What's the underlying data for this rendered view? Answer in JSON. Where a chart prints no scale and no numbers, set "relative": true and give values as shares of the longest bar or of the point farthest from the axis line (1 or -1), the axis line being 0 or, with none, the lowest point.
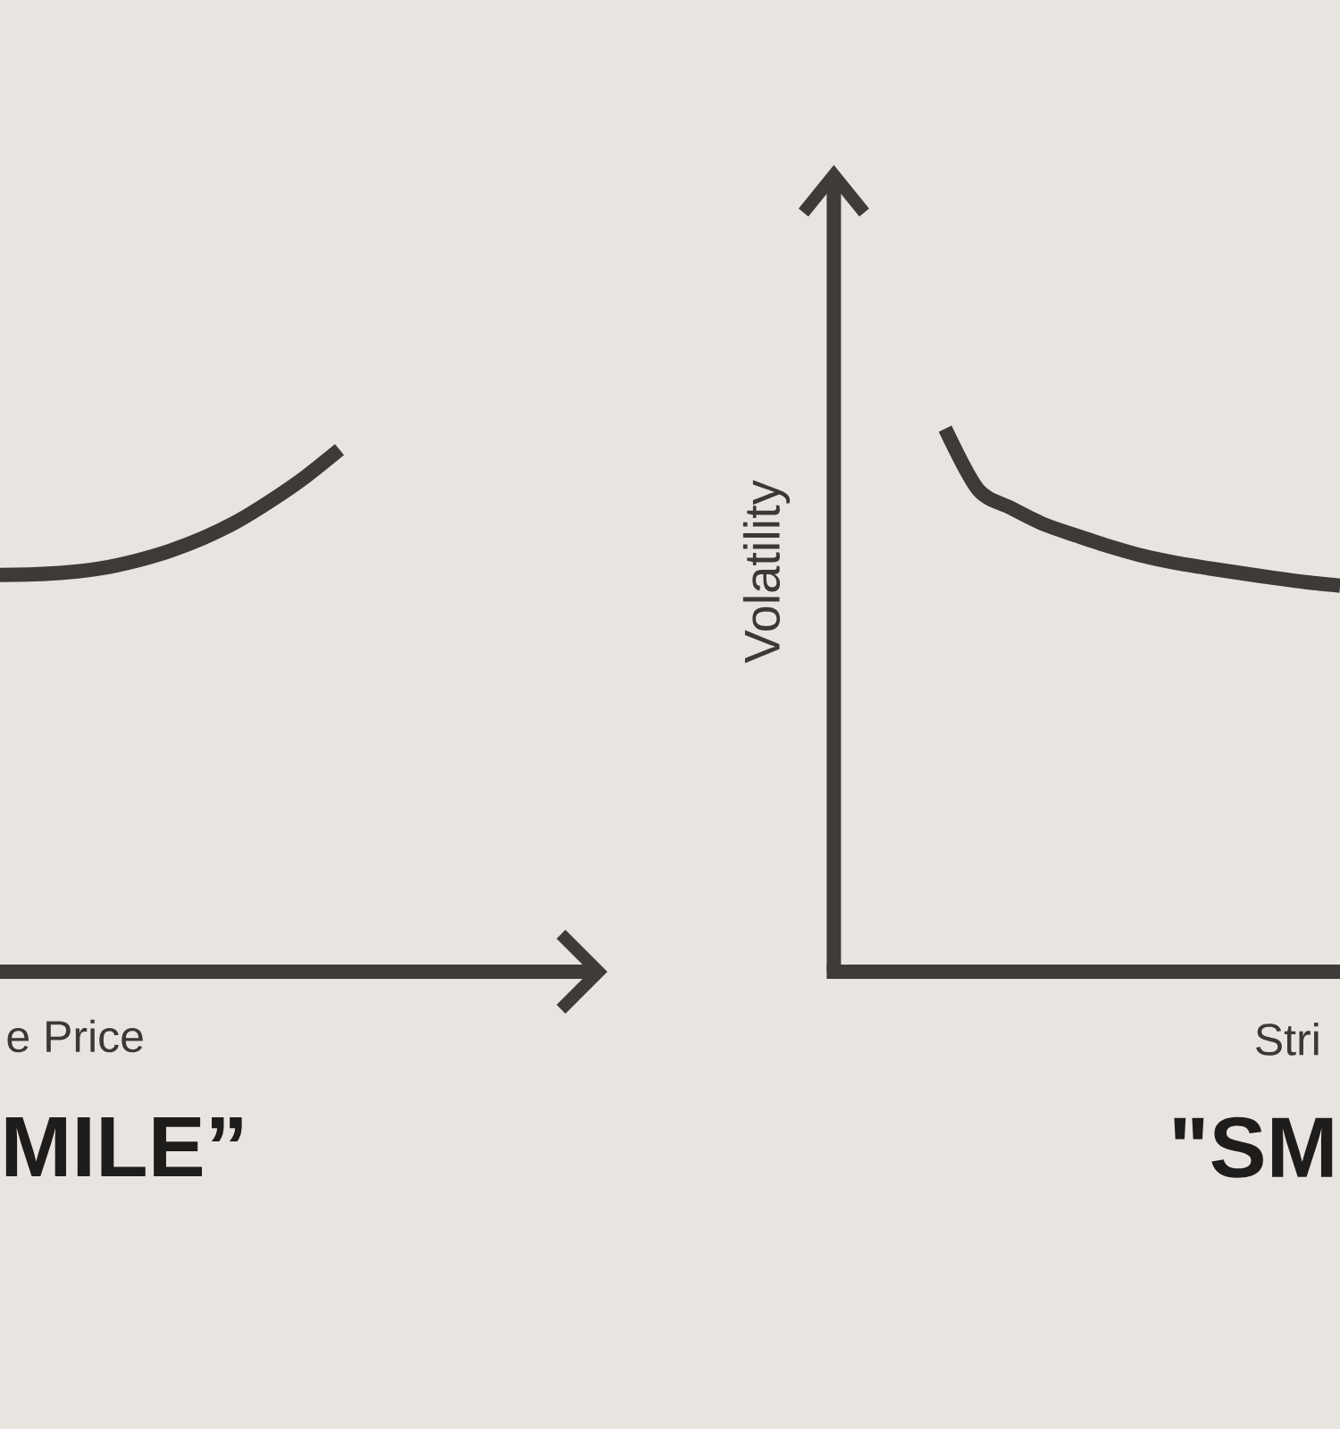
{
  "chart_data": [
    {
      "type": "line",
      "relative": true,
      "title": "MILE”",
      "xlabel": "e Price",
      "categories": [
        null,
        null,
        null,
        null,
        null,
        null,
        null,
        null,
        null,
        null,
        null,
        null,
        null,
        null,
        null,
        null,
        null,
        null
      ],
      "values": [
        0.76,
        0.761,
        0.765,
        0.773,
        0.787,
        0.806,
        0.831,
        0.863,
        0.903,
        0.948,
        1,
        null,
        null,
        null,
        null,
        null,
        null,
        null
      ],
      "color": "#3d3a37"
    },
    {
      "type": "line",
      "relative": true,
      "title": "\"SM",
      "xlabel": "Stri",
      "ylabel": "Volatility",
      "categories": [
        null,
        null,
        null,
        null,
        null,
        null,
        null,
        null,
        null,
        null,
        null,
        null,
        null,
        null,
        null,
        null
      ],
      "values": [
        null,
        null,
        null,
        1,
        0.888,
        0.854,
        0.824,
        0.803,
        0.783,
        0.766,
        0.753,
        0.743,
        0.734,
        0.725,
        0.717,
        0.711
      ],
      "color": "#3d3a37"
    }
  ]
}
